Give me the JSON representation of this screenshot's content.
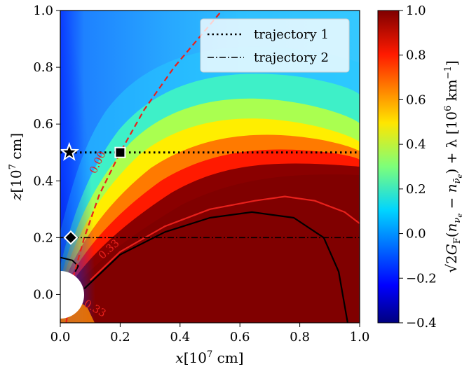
{
  "chart_data": {
    "type": "heatmap",
    "xlabel": "x[10^7 cm]",
    "ylabel": "z[10^7 cm]",
    "xlim": [
      0.0,
      1.0
    ],
    "ylim": [
      -0.1,
      1.0
    ],
    "x_ticks": [
      "0.0",
      "0.2",
      "0.4",
      "0.6",
      "0.8",
      "1.0"
    ],
    "x_tick_values": [
      0.0,
      0.2,
      0.4,
      0.6,
      0.8,
      1.0
    ],
    "y_ticks": [
      "0.0",
      "0.2",
      "0.4",
      "0.6",
      "0.8",
      "1.0"
    ],
    "y_tick_values": [
      0.0,
      0.2,
      0.4,
      0.6,
      0.8,
      1.0
    ],
    "colorbar": {
      "label": "√2G_F(n_νe − n_ν̄e) + λ [10^6 km^−1]",
      "min": -0.4,
      "max": 1.0,
      "colormap": "jet",
      "ticks": [
        "−0.4",
        "−0.2",
        "0.0",
        "0.2",
        "0.4",
        "0.6",
        "0.8",
        "1.0"
      ],
      "tick_values": [
        -0.4,
        -0.2,
        0.0,
        0.2,
        0.4,
        0.6,
        0.8,
        1.0
      ]
    },
    "legend": {
      "placement": "top-right",
      "entries": [
        {
          "label": "trajectory 1",
          "style": "dotted"
        },
        {
          "label": "trajectory 2",
          "style": "dashdot"
        }
      ]
    },
    "trajectories": [
      {
        "name": "trajectory 1",
        "z": 0.5,
        "x_range": [
          0.0,
          1.0
        ]
      },
      {
        "name": "trajectory 2",
        "z": 0.2,
        "x_range": [
          0.0,
          1.0
        ]
      }
    ],
    "markers": [
      {
        "symbol": "star",
        "x": 0.03,
        "z": 0.5
      },
      {
        "symbol": "square",
        "x": 0.2,
        "z": 0.5
      },
      {
        "symbol": "diamond",
        "x": 0.035,
        "z": 0.2
      }
    ],
    "contour_labels": [
      "0.00",
      "0.33",
      "0.33"
    ],
    "contours": {
      "zero_contour": {
        "label": "0.00",
        "color": "#e8211c",
        "style": "dashed",
        "points": [
          [
            0.02,
            -0.1
          ],
          [
            0.04,
            0.05
          ],
          [
            0.08,
            0.2
          ],
          [
            0.13,
            0.35
          ],
          [
            0.2,
            0.5
          ],
          [
            0.28,
            0.65
          ],
          [
            0.38,
            0.8
          ],
          [
            0.5,
            0.95
          ],
          [
            0.54,
            1.0
          ]
        ]
      },
      "red_contour": {
        "label": "0.33",
        "color": "#e8211c",
        "style": "solid",
        "points": [
          [
            0.1,
            0.05
          ],
          [
            0.2,
            0.15
          ],
          [
            0.35,
            0.24
          ],
          [
            0.5,
            0.3
          ],
          [
            0.65,
            0.33
          ],
          [
            0.75,
            0.345
          ],
          [
            0.85,
            0.33
          ],
          [
            0.95,
            0.29
          ],
          [
            1.0,
            0.25
          ]
        ]
      },
      "black_contour": {
        "color": "#000000",
        "style": "solid",
        "points": [
          [
            0.08,
            0.02
          ],
          [
            0.2,
            0.14
          ],
          [
            0.35,
            0.22
          ],
          [
            0.5,
            0.27
          ],
          [
            0.64,
            0.29
          ],
          [
            0.78,
            0.27
          ],
          [
            0.88,
            0.2
          ],
          [
            0.93,
            0.08
          ],
          [
            0.96,
            -0.1
          ]
        ]
      },
      "black_inner": {
        "color": "#000000",
        "style": "solid",
        "points": [
          [
            0.0,
            0.13
          ],
          [
            0.04,
            0.12
          ],
          [
            0.06,
            0.1
          ],
          [
            0.05,
            0.08
          ]
        ]
      }
    }
  }
}
